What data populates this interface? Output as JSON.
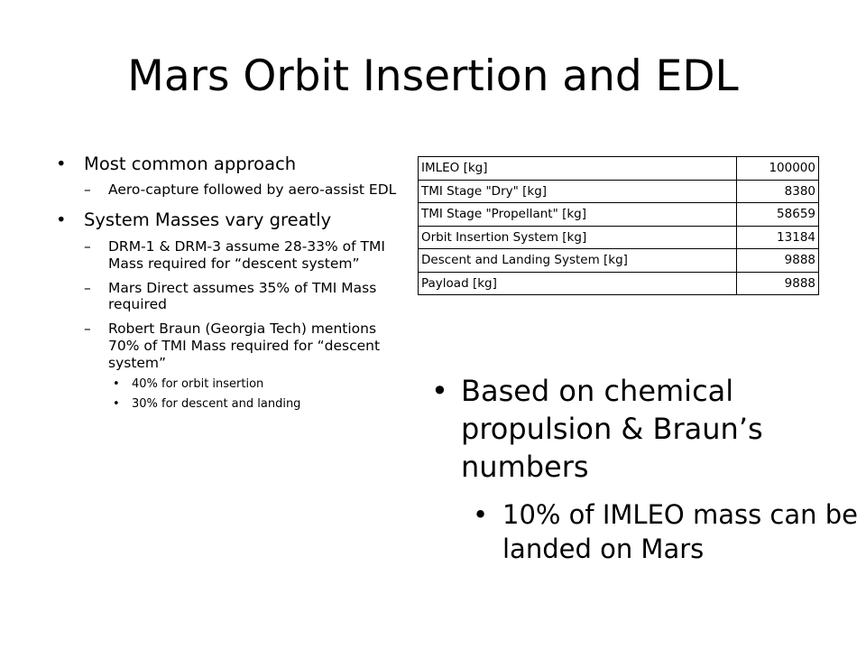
{
  "slide": {
    "title": "Mars Orbit Insertion and EDL",
    "left_bullets": [
      {
        "text": "Most common approach",
        "children": [
          {
            "text": "Aero-capture followed by aero-assist EDL"
          }
        ]
      },
      {
        "text": "System Masses vary greatly",
        "children": [
          {
            "text": "DRM-1 & DRM-3 assume 28-33% of TMI Mass required for “descent system”"
          },
          {
            "text": "Mars Direct assumes 35% of TMI Mass required"
          },
          {
            "text": "Robert Braun (Georgia Tech) mentions 70% of TMI Mass required for “descent system”",
            "children": [
              {
                "text": "40% for orbit insertion"
              },
              {
                "text": "30% for descent and landing"
              }
            ]
          }
        ]
      }
    ],
    "table": {
      "rows": [
        {
          "label": "IMLEO [kg]",
          "value": "100000"
        },
        {
          "label": "TMI Stage \"Dry\" [kg]",
          "value": "8380"
        },
        {
          "label": "TMI Stage \"Propellant\" [kg]",
          "value": "58659"
        },
        {
          "label": "Orbit Insertion System [kg]",
          "value": "13184"
        },
        {
          "label": "Descent and Landing System [kg]",
          "value": "9888"
        },
        {
          "label": "Payload [kg]",
          "value": "9888"
        }
      ]
    },
    "right_bullets": {
      "main": "Based on chemical propulsion & Braun’s numbers",
      "sub": "10% of IMLEO mass can be landed on Mars"
    }
  }
}
